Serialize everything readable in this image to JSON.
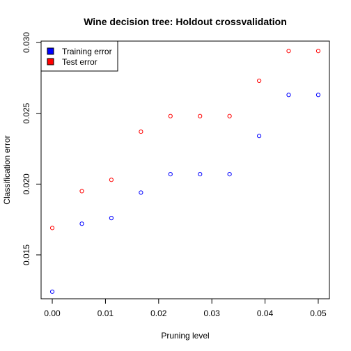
{
  "chart_data": {
    "type": "scatter",
    "title": "Wine decision tree: Holdout crossvalidation",
    "xlabel": "Pruning level",
    "ylabel": "Classification error",
    "xlim": [
      -0.0021,
      0.0521
    ],
    "ylim": [
      0.0119,
      0.0301
    ],
    "x_ticks": [
      0.0,
      0.01,
      0.02,
      0.03,
      0.04,
      0.05
    ],
    "x_tick_labels": [
      "0.00",
      "0.01",
      "0.02",
      "0.03",
      "0.04",
      "0.05"
    ],
    "y_ticks": [
      0.015,
      0.02,
      0.025,
      0.03
    ],
    "y_tick_labels": [
      "0.015",
      "0.020",
      "0.025",
      "0.030"
    ],
    "grid": false,
    "legend_position": "top-left",
    "x": [
      0.0,
      0.00556,
      0.01111,
      0.01667,
      0.02222,
      0.02778,
      0.03333,
      0.03889,
      0.04444,
      0.05
    ],
    "series": [
      {
        "name": "Training error",
        "color": "#0000ff",
        "marker": "open-circle",
        "values": [
          0.0124,
          0.0172,
          0.0176,
          0.0194,
          0.0207,
          0.0207,
          0.0207,
          0.0234,
          0.0263,
          0.0263
        ]
      },
      {
        "name": "Test error",
        "color": "#ff0000",
        "marker": "open-circle",
        "values": [
          0.0169,
          0.0195,
          0.0203,
          0.0237,
          0.0248,
          0.0248,
          0.0248,
          0.0273,
          0.0294,
          0.0294
        ]
      }
    ]
  }
}
